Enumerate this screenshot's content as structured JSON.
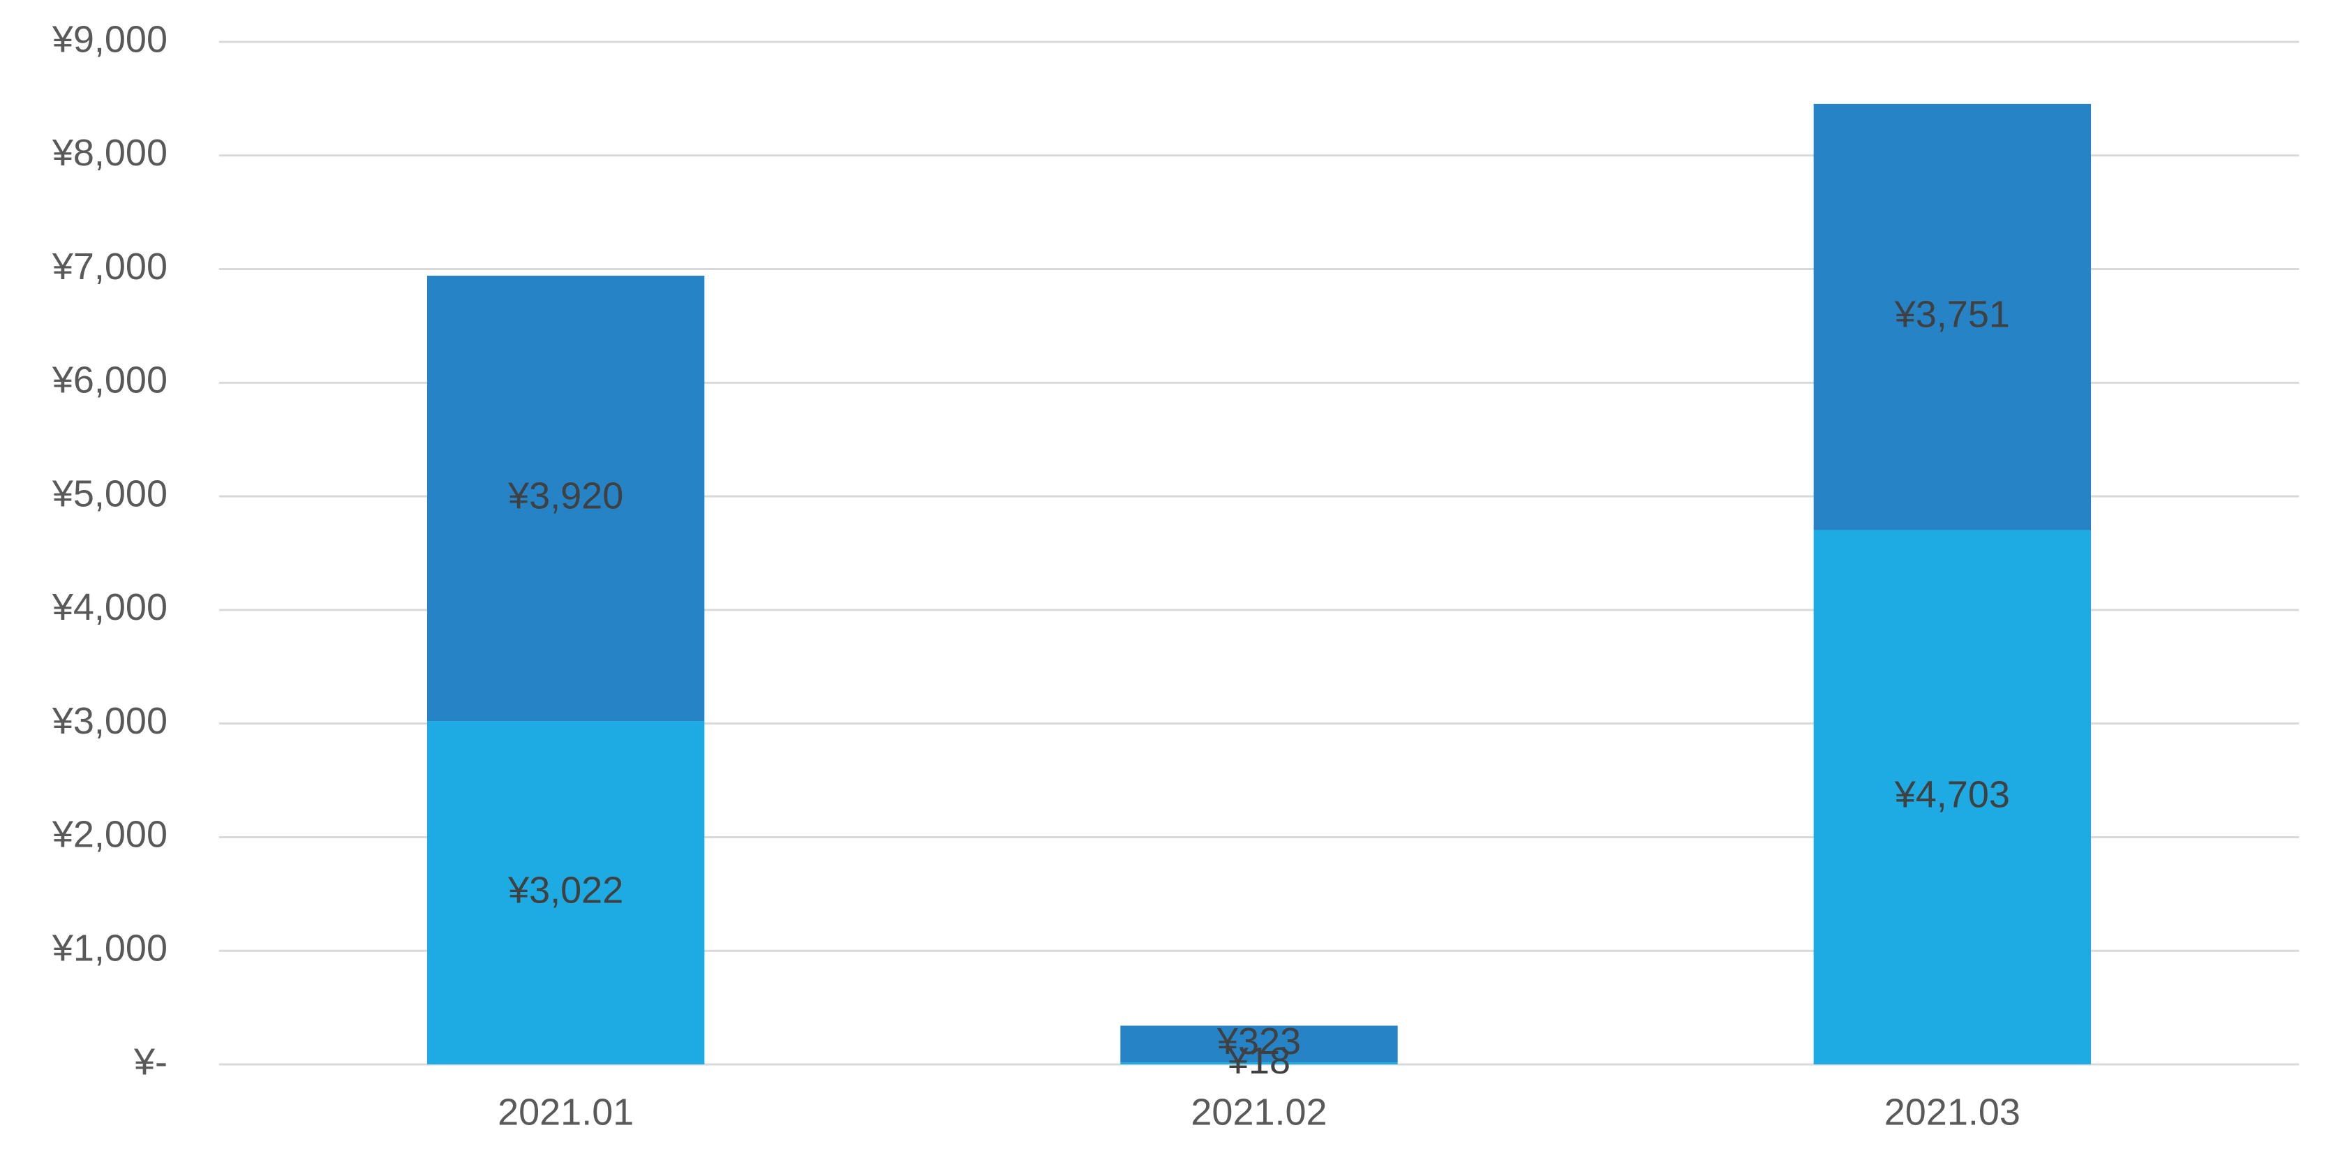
{
  "chart_data": {
    "type": "stacked_bar",
    "categories": [
      "2021.01",
      "2021.02",
      "2021.03"
    ],
    "series": [
      {
        "color": "#1eaae2",
        "values": [
          3022,
          18,
          4703
        ],
        "value_labels": [
          "¥3,022",
          "¥18",
          "¥4,703"
        ]
      },
      {
        "color": "#2683c6",
        "values": [
          3920,
          323,
          3751
        ],
        "value_labels": [
          "¥3,920",
          "¥323",
          "¥3,751"
        ]
      }
    ],
    "ylim": [
      0,
      9000
    ],
    "yticks": [
      {
        "value": 0,
        "label": "¥-"
      },
      {
        "value": 1000,
        "label": "¥1,000"
      },
      {
        "value": 2000,
        "label": "¥2,000"
      },
      {
        "value": 3000,
        "label": "¥3,000"
      },
      {
        "value": 4000,
        "label": "¥4,000"
      },
      {
        "value": 5000,
        "label": "¥5,000"
      },
      {
        "value": 6000,
        "label": "¥6,000"
      },
      {
        "value": 7000,
        "label": "¥7,000"
      },
      {
        "value": 8000,
        "label": "¥8,000"
      },
      {
        "value": 9000,
        "label": "¥9,000"
      }
    ],
    "grid": true
  }
}
